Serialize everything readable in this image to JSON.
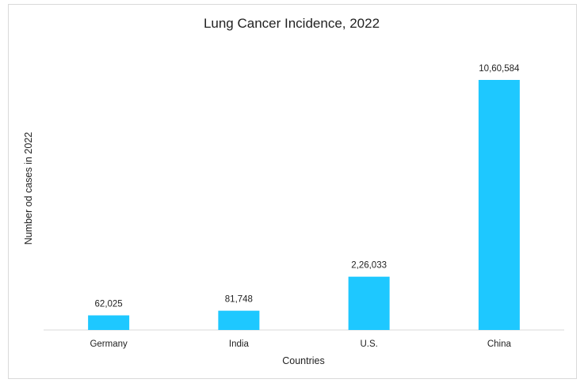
{
  "chart_data": {
    "type": "bar",
    "title": "Lung Cancer Incidence, 2022",
    "xlabel": "Countries",
    "ylabel": "Number od cases in 2022",
    "categories": [
      "Germany",
      "India",
      "U.S.",
      "China"
    ],
    "values": [
      62025,
      81748,
      226033,
      1060584
    ],
    "value_labels": [
      "62,025",
      "81,748",
      "2,26,033",
      "10,60,584"
    ],
    "ylim": [
      0,
      1060584
    ],
    "grid": false,
    "legend": "none",
    "bar_color": "#1ec8ff",
    "axis_color": "#d9d9d9"
  }
}
